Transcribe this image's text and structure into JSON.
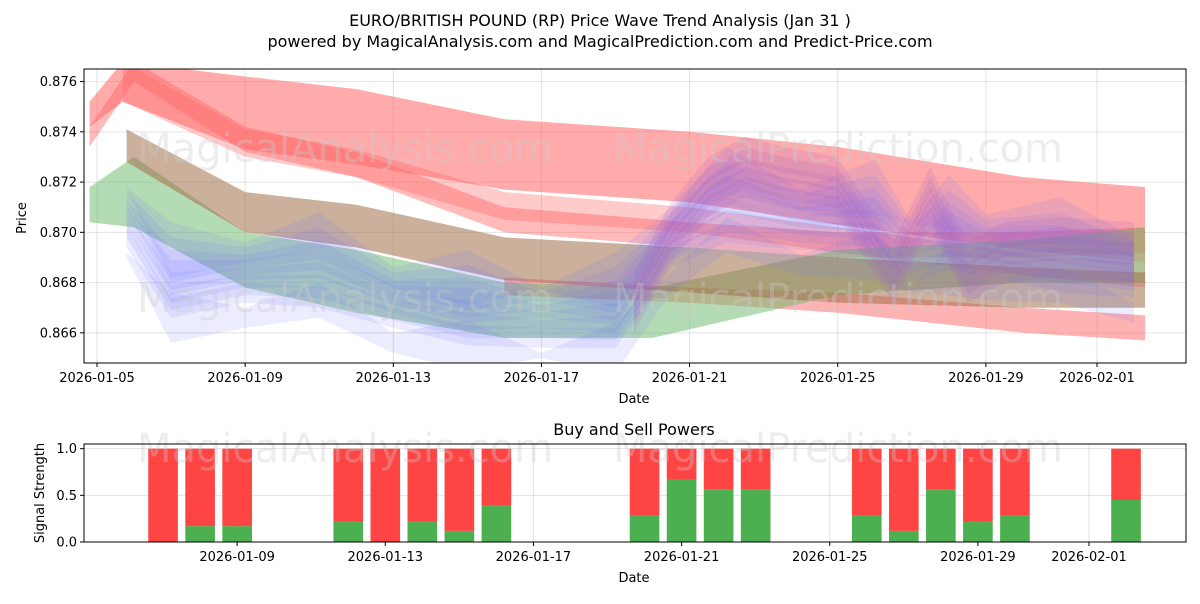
{
  "title": "EURO/BRITISH POUND (RP) Price Wave Trend Analysis (Jan 31 )",
  "subtitle": "powered by MagicalAnalysis.com and MagicalPrediction.com and Predict-Price.com",
  "watermarks": [
    "MagicalAnalysis.com",
    "MagicalPrediction.com"
  ],
  "colors": {
    "sell": "#ff4444",
    "buy": "#4caf50",
    "red_band": "#ff6666",
    "green_band": "#6ab96a",
    "blue_band": "#6b6bff",
    "purple_band": "#a05cc8"
  },
  "chart_data": [
    {
      "type": "area",
      "title": "",
      "xlabel": "Date",
      "ylabel": "Price",
      "xlim": [
        "2026-01-04.7",
        "2026-02-03.3"
      ],
      "ylim": [
        0.8648,
        0.8765
      ],
      "grid": true,
      "x_ticks": [
        "2026-01-05",
        "2026-01-09",
        "2026-01-13",
        "2026-01-17",
        "2026-01-21",
        "2026-01-25",
        "2026-01-29",
        "2026-02-01"
      ],
      "y_ticks": [
        "0.866",
        "0.868",
        "0.870",
        "0.872",
        "0.874",
        "0.876"
      ],
      "series": [
        {
          "name": "red-upper-band",
          "color": "red",
          "x": [
            4.8,
            5.7,
            9,
            12,
            16,
            21,
            25,
            30,
            33.3
          ],
          "upper": [
            0.8752,
            0.8768,
            0.8762,
            0.8757,
            0.8745,
            0.874,
            0.8734,
            0.8722,
            0.8718
          ],
          "lower": [
            0.8742,
            0.8752,
            0.8733,
            0.8727,
            0.8717,
            0.8712,
            0.8703,
            0.8693,
            0.8688
          ]
        },
        {
          "name": "red-mid-band",
          "color": "red",
          "x": [
            4.8,
            6,
            9,
            12,
            16,
            21,
            25,
            30,
            33.3
          ],
          "upper": [
            0.8742,
            0.8768,
            0.8742,
            0.8732,
            0.871,
            0.8704,
            0.87,
            0.87,
            0.8702
          ]
        },
        {
          "name": "red-lower-band",
          "color": "red",
          "x": [
            16,
            21,
            25,
            30,
            33.3
          ],
          "upper": [
            0.8682,
            0.8678,
            0.8676,
            0.867,
            0.8667
          ],
          "lower": [
            0.8675,
            0.8672,
            0.8668,
            0.866,
            0.8657
          ]
        },
        {
          "name": "brown-band",
          "color": "brown",
          "x": [
            5.8,
            9,
            12,
            16,
            21,
            25,
            30,
            33.3
          ],
          "upper": [
            0.8741,
            0.8716,
            0.8711,
            0.8698,
            0.8694,
            0.869,
            0.8686,
            0.8684
          ],
          "lower": [
            0.8728,
            0.87,
            0.8694,
            0.8681,
            0.8676,
            0.8672,
            0.867,
            0.867
          ]
        },
        {
          "name": "green-band",
          "color": "green",
          "x": [
            4.8,
            6,
            9,
            12,
            16,
            20,
            25,
            30,
            33.3
          ],
          "upper": [
            0.8718,
            0.873,
            0.87,
            0.8693,
            0.868,
            0.8678,
            0.8693,
            0.8697,
            0.8702
          ],
          "lower": [
            0.8714,
            0.8712,
            0.8688,
            0.8678,
            0.8668,
            0.8668,
            0.8685,
            0.869,
            0.869
          ]
        },
        {
          "name": "blue-wave-bands",
          "color": "blue",
          "x": [
            5.8,
            7,
            9,
            11,
            13,
            15,
            17,
            19,
            20.5,
            22,
            24,
            26,
            27,
            28,
            29,
            31,
            33
          ],
          "center": [
            0.8708,
            0.868,
            0.8686,
            0.8684,
            0.8676,
            0.8669,
            0.8668,
            0.8668,
            0.87,
            0.871,
            0.8707,
            0.8705,
            0.8694,
            0.8699,
            0.8697,
            0.869,
            0.8688
          ]
        },
        {
          "name": "purple-wave-bands",
          "color": "purple",
          "x": [
            19.5,
            20.5,
            21.5,
            22.5,
            23.5,
            25,
            26.5,
            27.5,
            28.5,
            29.5,
            31,
            33
          ],
          "center": [
            0.867,
            0.8698,
            0.8716,
            0.8724,
            0.872,
            0.8716,
            0.8682,
            0.8712,
            0.8682,
            0.869,
            0.8692,
            0.869
          ]
        }
      ]
    },
    {
      "type": "bar",
      "title": "Buy and Sell Powers",
      "xlabel": "Date",
      "ylabel": "Signal Strength",
      "ylim": [
        0,
        1.05
      ],
      "x_ticks": [
        "2026-01-09",
        "2026-01-13",
        "2026-01-17",
        "2026-01-21",
        "2026-01-25",
        "2026-01-29",
        "2026-02-01"
      ],
      "y_ticks": [
        "0.0",
        "0.5",
        "1.0"
      ],
      "categories": [
        "2026-01-07",
        "2026-01-08",
        "2026-01-09",
        "2026-01-12",
        "2026-01-13",
        "2026-01-14",
        "2026-01-15",
        "2026-01-16",
        "2026-01-20",
        "2026-01-21",
        "2026-01-22",
        "2026-01-23",
        "2026-01-26",
        "2026-01-27",
        "2026-01-28",
        "2026-01-29",
        "2026-01-30",
        "2026-02-02"
      ],
      "series": [
        {
          "name": "Buy",
          "values": [
            0.0,
            0.17,
            0.17,
            0.22,
            0.0,
            0.22,
            0.12,
            0.39,
            0.28,
            0.67,
            0.56,
            0.56,
            0.28,
            0.12,
            0.56,
            0.22,
            0.28,
            0.45
          ]
        },
        {
          "name": "Sell",
          "values": [
            1.0,
            0.83,
            0.83,
            0.78,
            1.0,
            0.78,
            0.88,
            0.61,
            0.72,
            0.33,
            0.44,
            0.44,
            0.72,
            0.88,
            0.44,
            0.78,
            0.72,
            0.55
          ]
        }
      ]
    }
  ]
}
